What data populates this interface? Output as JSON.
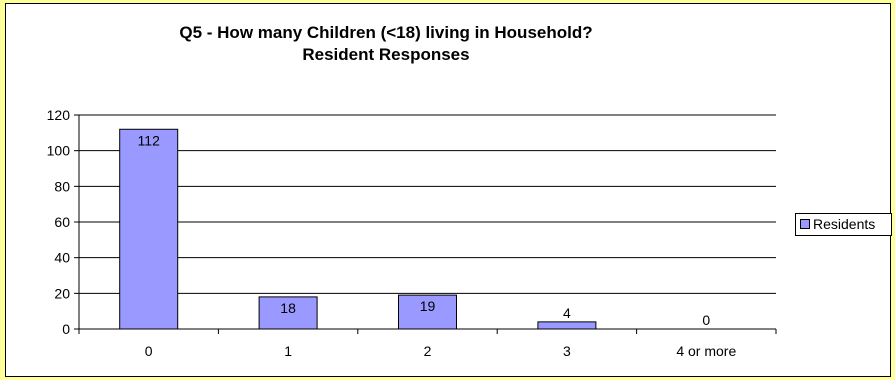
{
  "chart_data": {
    "type": "bar",
    "title_line1": "Q5 - How many Children (<18) living in Household?",
    "title_line2": "Resident Responses",
    "categories": [
      "0",
      "1",
      "2",
      "3",
      "4 or more"
    ],
    "series": [
      {
        "name": "Residents",
        "values": [
          112,
          18,
          19,
          4,
          0
        ]
      }
    ],
    "data_labels": [
      "112",
      "18",
      "19",
      "4",
      "0"
    ],
    "ylim": [
      0,
      120
    ],
    "yticks": [
      "0",
      "20",
      "40",
      "60",
      "80",
      "100",
      "120"
    ],
    "grid": true,
    "legend_position": "right",
    "colors": {
      "bar": "#9999FF",
      "background": "#FFFF99",
      "plot": "#FFFFFF"
    }
  }
}
